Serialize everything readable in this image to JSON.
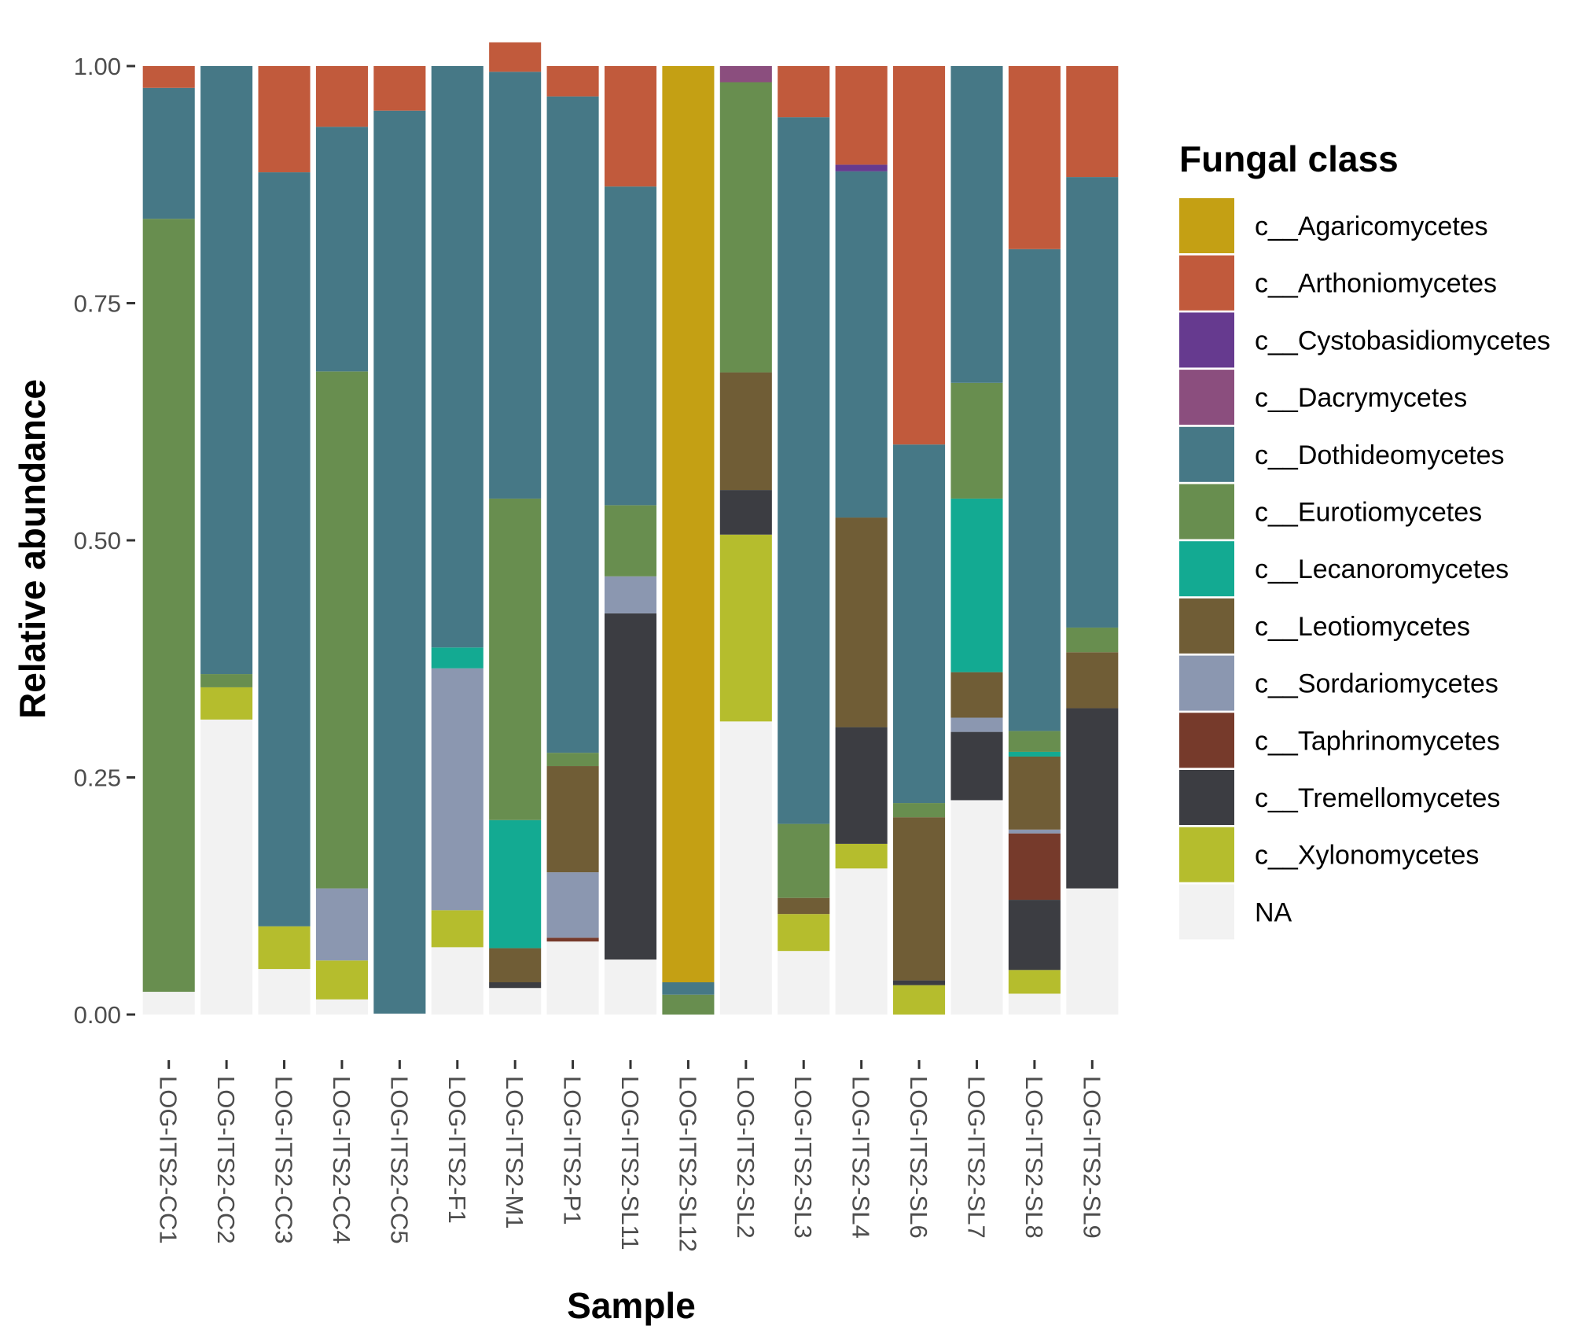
{
  "chart_data": {
    "type": "bar",
    "stacked": true,
    "xlabel": "Sample",
    "ylabel": "Relative abundance",
    "ylim": [
      0,
      1
    ],
    "yticks": [
      "0.00",
      "0.25",
      "0.50",
      "0.75",
      "1.00"
    ],
    "grid": false,
    "legend": {
      "title": "Fungal class",
      "position": "right",
      "entries": [
        {
          "name": "c__Agaricomycetes",
          "color": "#C4A014"
        },
        {
          "name": "c__Arthoniomycetes",
          "color": "#C15A3C"
        },
        {
          "name": "c__Cystobasidiomycetes",
          "color": "#663A8F"
        },
        {
          "name": "c__Dacrymycetes",
          "color": "#8B4E7E"
        },
        {
          "name": "c__Dothideomycetes",
          "color": "#467886"
        },
        {
          "name": "c__Eurotiomycetes",
          "color": "#688E4F"
        },
        {
          "name": "c__Lecanoromycetes",
          "color": "#13AA92"
        },
        {
          "name": "c__Leotiomycetes",
          "color": "#705D36"
        },
        {
          "name": "c__Sordariomycetes",
          "color": "#8B97B0"
        },
        {
          "name": "c__Taphrinomycetes",
          "color": "#763A2B"
        },
        {
          "name": "c__Tremellomycetes",
          "color": "#3C3D42"
        },
        {
          "name": "c__Xylonomycetes",
          "color": "#B5BD2D"
        },
        {
          "name": "NA",
          "color": "#F2F2F2"
        }
      ]
    },
    "categories": [
      "LOG-ITS2-CC1",
      "LOG-ITS2-CC2",
      "LOG-ITS2-CC3",
      "LOG-ITS2-CC4",
      "LOG-ITS2-CC5",
      "LOG-ITS2-F1",
      "LOG-ITS2-M1",
      "LOG-ITS2-P1",
      "LOG-ITS2-SL11",
      "LOG-ITS2-SL12",
      "LOG-ITS2-SL2",
      "LOG-ITS2-SL3",
      "LOG-ITS2-SL4",
      "LOG-ITS2-SL6",
      "LOG-ITS2-SL7",
      "LOG-ITS2-SL8",
      "LOG-ITS2-SL9"
    ],
    "series": [
      {
        "name": "NA",
        "values": [
          0.024,
          0.311,
          0.048,
          0.016,
          0.001,
          0.071,
          0.028,
          0.077,
          0.058,
          0.0,
          0.309,
          0.067,
          0.154,
          0.0,
          0.226,
          0.022,
          0.133
        ]
      },
      {
        "name": "c__Xylonomycetes",
        "values": [
          0,
          0.034,
          0.045,
          0.041,
          0,
          0.039,
          0,
          0,
          0,
          0,
          0.197,
          0.039,
          0.026,
          0.031,
          0,
          0.025,
          0
        ]
      },
      {
        "name": "c__Tremellomycetes",
        "values": [
          0,
          0,
          0,
          0,
          0,
          0,
          0.006,
          0,
          0.365,
          0,
          0.047,
          0,
          0.123,
          0.005,
          0.072,
          0.074,
          0.19
        ]
      },
      {
        "name": "c__Taphrinomycetes",
        "values": [
          0,
          0,
          0,
          0,
          0,
          0,
          0,
          0.004,
          0,
          0,
          0,
          0,
          0,
          0,
          0,
          0.07,
          0
        ]
      },
      {
        "name": "c__Sordariomycetes",
        "values": [
          0,
          0,
          0,
          0.076,
          0,
          0.255,
          0,
          0.069,
          0.039,
          0,
          0,
          0,
          0,
          0,
          0.015,
          0.004,
          0
        ]
      },
      {
        "name": "c__Leotiomycetes",
        "values": [
          0,
          0,
          0,
          0,
          0,
          0,
          0.036,
          0.112,
          0,
          0,
          0.124,
          0.017,
          0.221,
          0.172,
          0.048,
          0.077,
          0.059
        ]
      },
      {
        "name": "c__Lecanoromycetes",
        "values": [
          0,
          0,
          0,
          0,
          0,
          0.022,
          0.135,
          0,
          0,
          0,
          0,
          0,
          0,
          0,
          0.183,
          0.005,
          0
        ]
      },
      {
        "name": "c__Eurotiomycetes",
        "values": [
          0.815,
          0.014,
          0,
          0.545,
          0,
          0,
          0.339,
          0.014,
          0.075,
          0.021,
          0.306,
          0.078,
          0,
          0.015,
          0.122,
          0.022,
          0.026
        ]
      },
      {
        "name": "c__Dothideomycetes",
        "values": [
          0.138,
          0.641,
          0.795,
          0.258,
          0.952,
          0.613,
          0.45,
          0.692,
          0.336,
          0.013,
          0,
          0.745,
          0.365,
          0.378,
          0.334,
          0.508,
          0.475
        ]
      },
      {
        "name": "c__Dacrymycetes",
        "values": [
          0,
          0,
          0,
          0,
          0,
          0,
          0,
          0,
          0,
          0,
          0.017,
          0,
          0,
          0,
          0,
          0,
          0
        ]
      },
      {
        "name": "c__Cystobasidiomycetes",
        "values": [
          0,
          0,
          0,
          0,
          0,
          0,
          0,
          0,
          0,
          0,
          0,
          0,
          0.007,
          0,
          0,
          0,
          0
        ]
      },
      {
        "name": "c__Arthoniomycetes",
        "values": [
          0.023,
          0,
          0.112,
          0.064,
          0.047,
          0,
          0.031,
          0.032,
          0.127,
          0,
          0,
          0.054,
          0.104,
          0.399,
          0,
          0.193,
          0.117
        ]
      },
      {
        "name": "c__Agaricomycetes",
        "values": [
          0,
          0,
          0,
          0,
          0,
          0,
          0,
          0,
          0,
          0.966,
          0,
          0,
          0,
          0,
          0,
          0,
          0
        ]
      }
    ]
  }
}
